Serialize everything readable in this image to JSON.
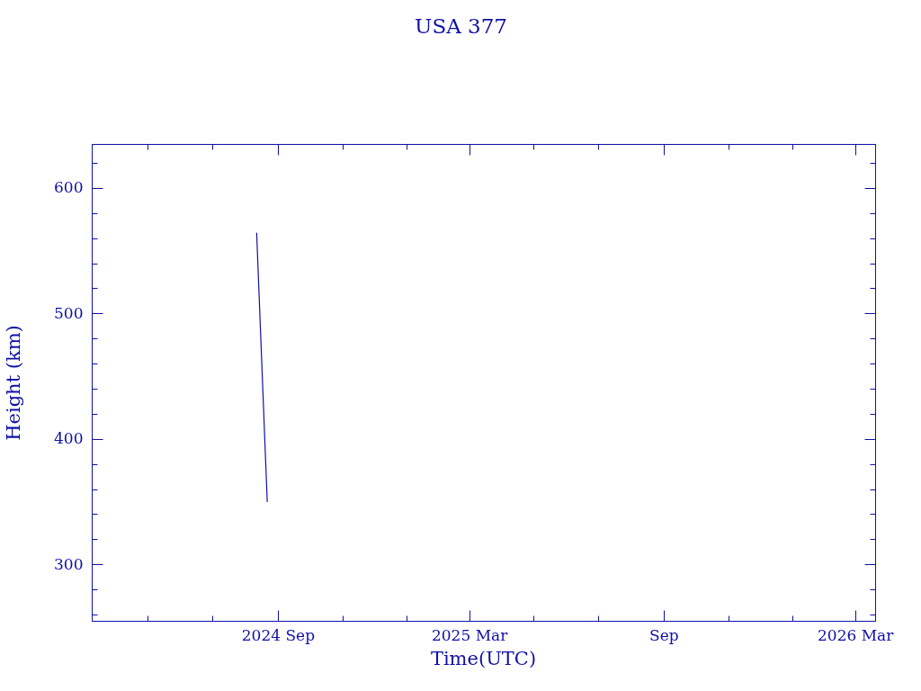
{
  "chart_data": {
    "type": "line",
    "title": "USA 377",
    "xlabel": "Time(UTC)",
    "ylabel": "Height (km)",
    "x": [
      "2024-08-12",
      "2024-08-22"
    ],
    "series": [
      {
        "color": "#1010a8",
        "values": [
          564,
          350
        ]
      }
    ],
    "xlim": [
      "2024-03-09",
      "2026-03-20"
    ],
    "xticks": [
      {
        "value": "2024-05-01",
        "label": null
      },
      {
        "value": "2024-07-01",
        "label": null
      },
      {
        "value": "2024-09-01",
        "label": "2024 Sep"
      },
      {
        "value": "2024-11-01",
        "label": null
      },
      {
        "value": "2025-01-01",
        "label": null
      },
      {
        "value": "2025-03-01",
        "label": "2025 Mar"
      },
      {
        "value": "2025-05-01",
        "label": null
      },
      {
        "value": "2025-07-01",
        "label": null
      },
      {
        "value": "2025-09-01",
        "label": "Sep"
      },
      {
        "value": "2025-11-01",
        "label": null
      },
      {
        "value": "2026-01-01",
        "label": null
      },
      {
        "value": "2026-03-01",
        "label": "2026 Mar"
      }
    ],
    "ylim": [
      255,
      635
    ],
    "yticks": [
      {
        "value": 260,
        "label": null
      },
      {
        "value": 280,
        "label": null
      },
      300,
      {
        "value": 320,
        "label": null
      },
      {
        "value": 340,
        "label": null
      },
      {
        "value": 360,
        "label": null
      },
      {
        "value": 380,
        "label": null
      },
      400,
      {
        "value": 420,
        "label": null
      },
      {
        "value": 440,
        "label": null
      },
      {
        "value": 460,
        "label": null
      },
      {
        "value": 480,
        "label": null
      },
      500,
      {
        "value": 520,
        "label": null
      },
      {
        "value": 540,
        "label": null
      },
      {
        "value": 560,
        "label": null
      },
      {
        "value": 580,
        "label": null
      },
      600,
      {
        "value": 620,
        "label": null
      }
    ]
  }
}
